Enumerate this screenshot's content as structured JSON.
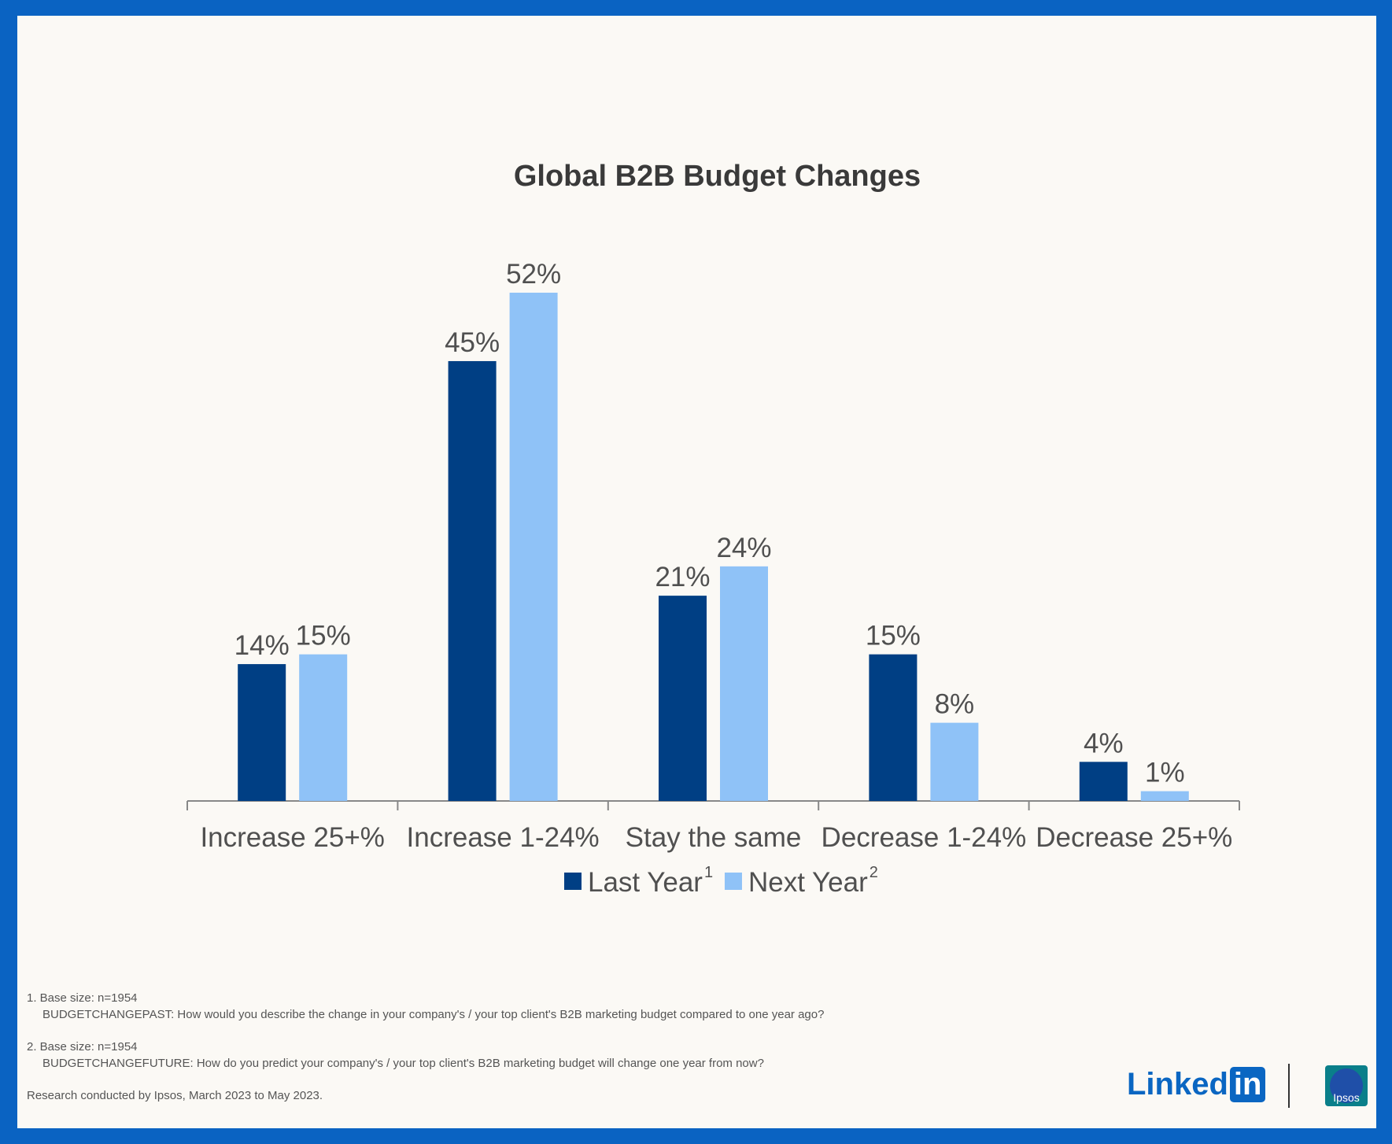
{
  "chart_data": {
    "type": "bar",
    "title": "Global B2B Budget Changes",
    "categories": [
      "Increase 25+%",
      "Increase 1-24%",
      "Stay the same",
      "Decrease 1-24%",
      "Decrease 25+%"
    ],
    "series": [
      {
        "name": "Last Year",
        "superscript": "1",
        "color": "#003f84",
        "values": [
          14,
          45,
          21,
          15,
          4
        ],
        "labels": [
          "14%",
          "45%",
          "21%",
          "15%",
          "4%"
        ]
      },
      {
        "name": "Next Year",
        "superscript": "2",
        "color": "#8fc2f7",
        "values": [
          15,
          52,
          24,
          8,
          1
        ],
        "labels": [
          "15%",
          "52%",
          "24%",
          "8%",
          "1%"
        ]
      }
    ],
    "ylim": [
      0,
      52
    ],
    "grid": false,
    "legend_position": "bottom"
  },
  "footnotes": {
    "fn1_line1": "1. Base size: n=1954",
    "fn1_line2": "BUDGETCHANGEPAST: How would you describe the change in your company's / your top client's B2B marketing budget compared to one year ago?",
    "fn2_line1": "2. Base size: n=1954",
    "fn2_line2": "BUDGETCHANGEFUTURE: How do you predict your company's / your top client's B2B marketing budget will change one year from now?",
    "research": "Research conducted by Ipsos, March 2023 to May 2023."
  },
  "logos": {
    "linkedin_text": "Linked",
    "linkedin_box": "in",
    "ipsos_text": "Ipsos"
  }
}
